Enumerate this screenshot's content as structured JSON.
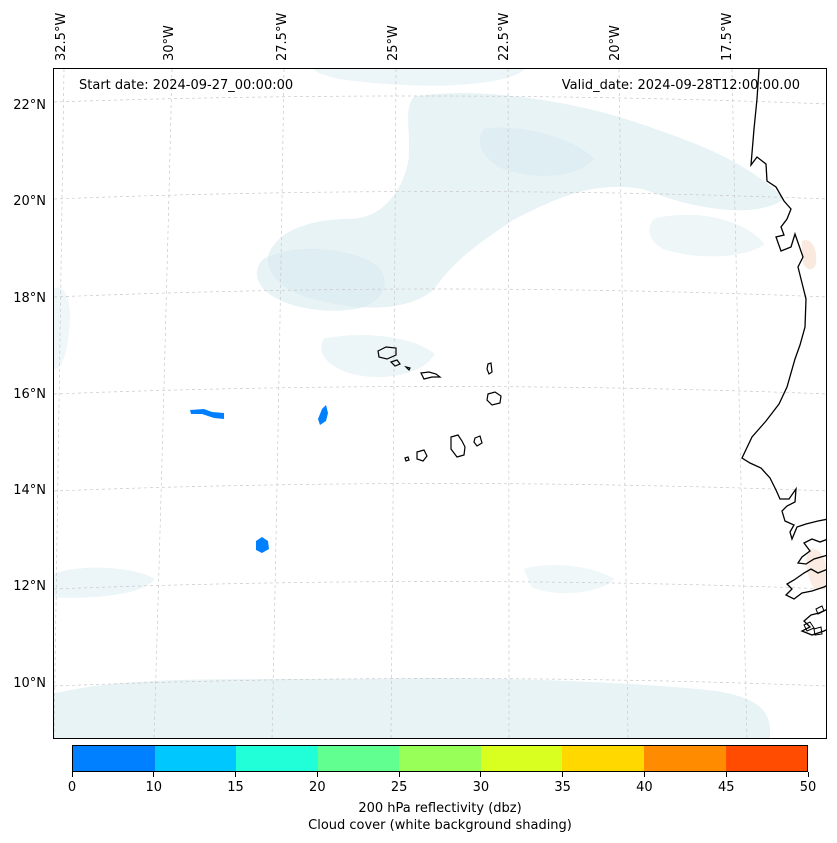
{
  "header": {
    "start_date": "Start date: 2024-09-27_00:00:00",
    "valid_date": "Valid_date: 2024-09-28T12:00:00.00"
  },
  "longitude_labels": [
    "32.5°W",
    "30°W",
    "27.5°W",
    "25°W",
    "22.5°W",
    "20°W",
    "17.5°W"
  ],
  "latitude_labels": [
    "22°N",
    "20°N",
    "18°N",
    "16°N",
    "14°N",
    "12°N",
    "10°N"
  ],
  "colorbar": {
    "ticks": [
      "0",
      "10",
      "15",
      "20",
      "25",
      "30",
      "35",
      "40",
      "45",
      "50"
    ],
    "colors": [
      "#0080ff",
      "#00c8ff",
      "#20ffd8",
      "#60ff90",
      "#98ff58",
      "#d8ff20",
      "#ffd800",
      "#ff8c00",
      "#ff4c00"
    ],
    "label_line1": "200 hPa reflectivity (dbz)",
    "label_line2": "Cloud cover (white background shading)"
  },
  "colors": {
    "cloud": "#d7ebf0",
    "reflectivity_low": "#0080ff",
    "coastline": "#000000",
    "gridline": "#c8c8c8",
    "warm_shade": "#f8e4d6"
  }
}
